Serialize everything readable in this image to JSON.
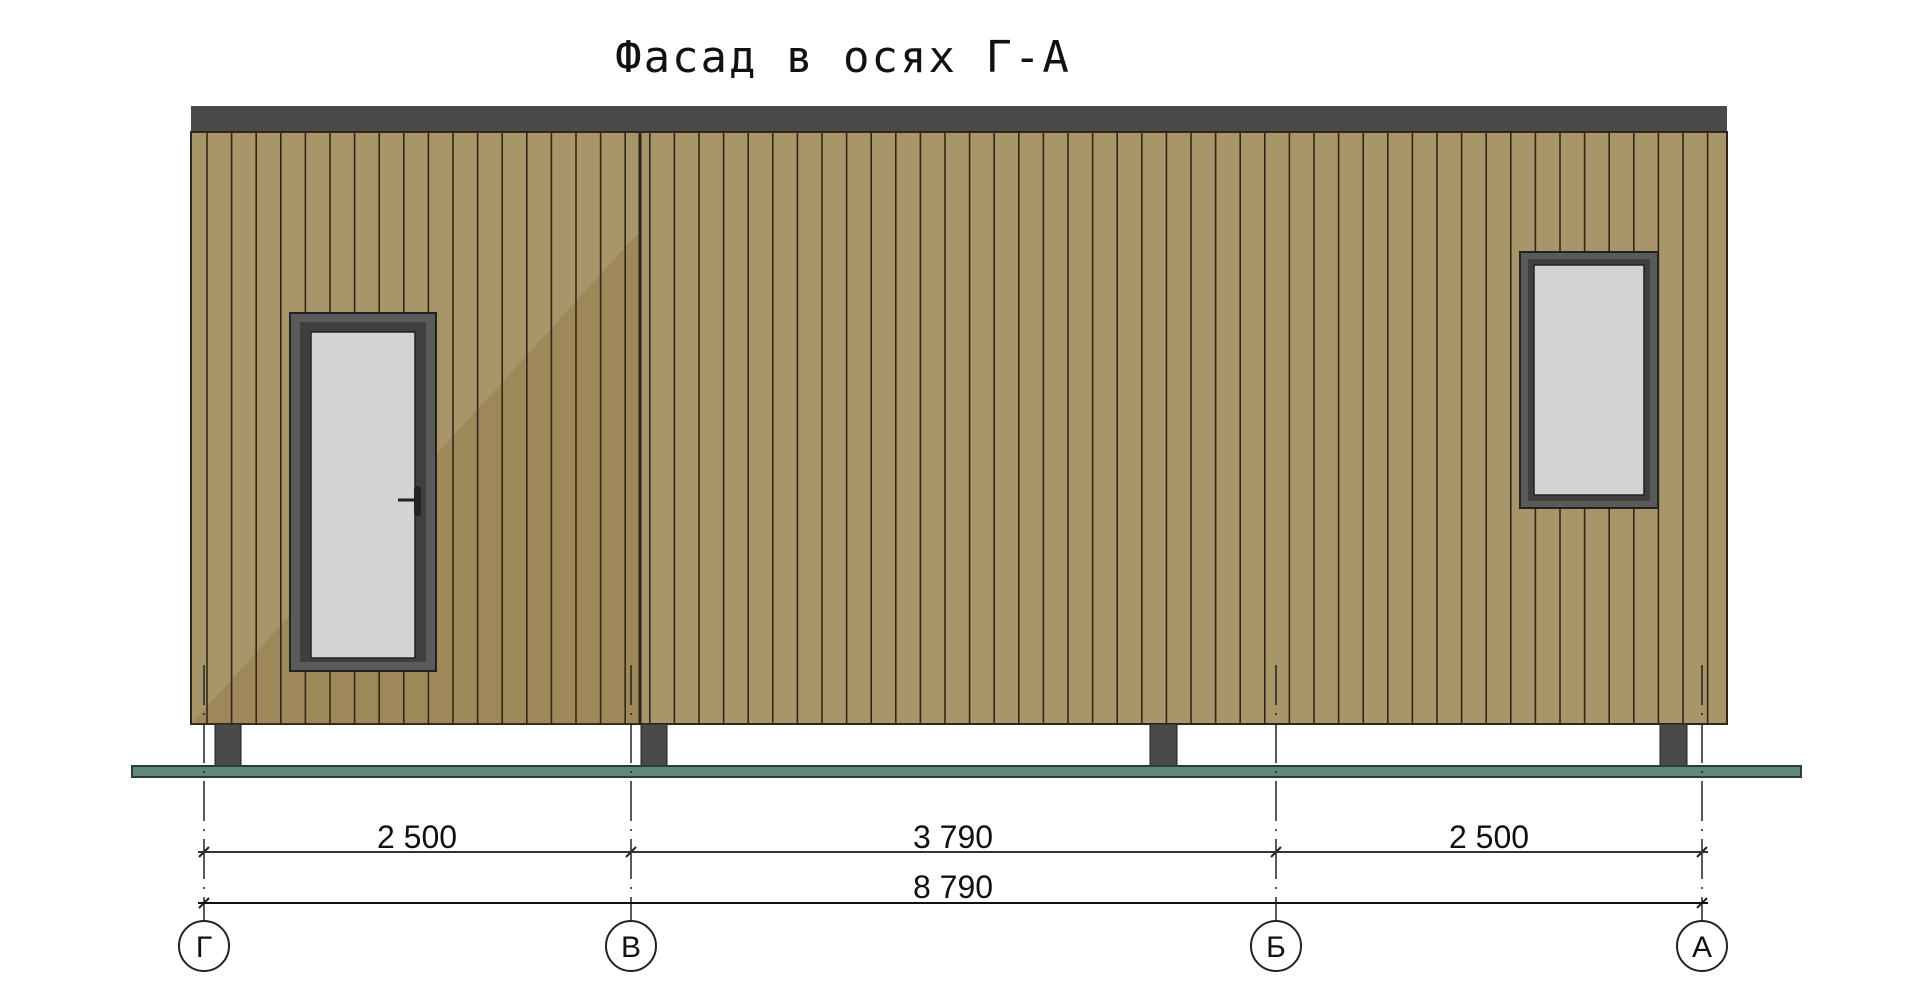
{
  "title": "Фасад в осях Г-А",
  "colors": {
    "cladding": "#a8956a",
    "board_line": "#2f2818",
    "roof": "#4a4a4a",
    "frame": "#4b4b4b",
    "glass": "#d3d5d3",
    "ground": "#5e8a79"
  },
  "axes": [
    {
      "label": "Г"
    },
    {
      "label": "В"
    },
    {
      "label": "Б"
    },
    {
      "label": "А"
    }
  ],
  "dimensions": {
    "segments": [
      "2 500",
      "3 790",
      "2 500"
    ],
    "total": "8 790"
  }
}
